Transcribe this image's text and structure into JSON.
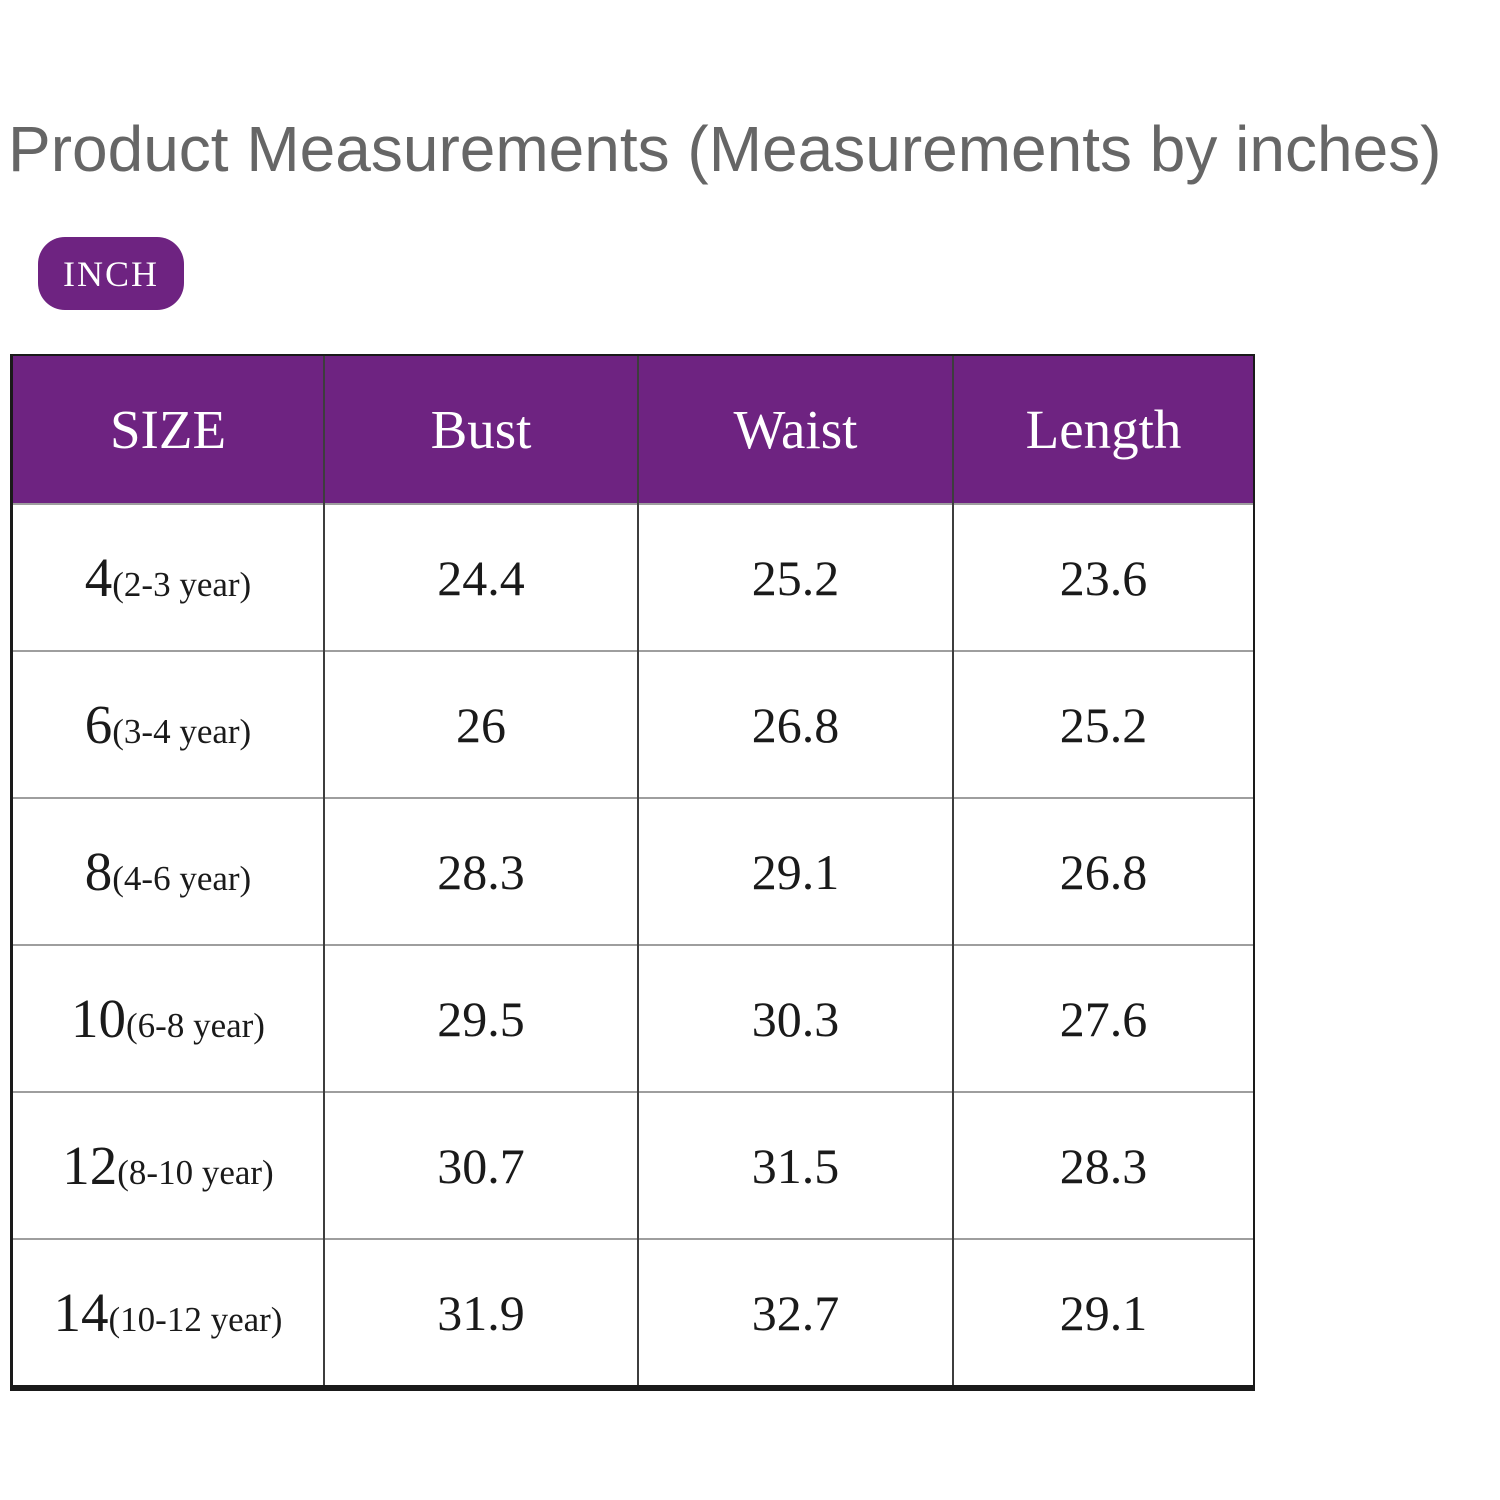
{
  "page": {
    "background_color": "#ffffff"
  },
  "header": {
    "title": "Product Measurements (Measurements by inches)",
    "title_color": "#666666"
  },
  "unit_badge": {
    "label": "INCH",
    "background_color": "#6e2381",
    "text_color": "#ffffff"
  },
  "size_table": {
    "header_background_color": "#6e2381",
    "header_text_color": "#ffffff",
    "columns": [
      "SIZE",
      "Bust",
      "Waist",
      "Length"
    ],
    "rows": [
      {
        "size": "4",
        "age": "(2-3 year)",
        "bust": "24.4",
        "waist": "25.2",
        "length": "23.6"
      },
      {
        "size": "6",
        "age": "(3-4 year)",
        "bust": "26",
        "waist": "26.8",
        "length": "25.2"
      },
      {
        "size": "8",
        "age": "(4-6 year)",
        "bust": "28.3",
        "waist": "29.1",
        "length": "26.8"
      },
      {
        "size": "10",
        "age": "(6-8 year)",
        "bust": "29.5",
        "waist": "30.3",
        "length": "27.6"
      },
      {
        "size": "12",
        "age": "(8-10 year)",
        "bust": "30.7",
        "waist": "31.5",
        "length": "28.3"
      },
      {
        "size": "14",
        "age": "(10-12 year)",
        "bust": "31.9",
        "waist": "32.7",
        "length": "29.1"
      }
    ]
  }
}
